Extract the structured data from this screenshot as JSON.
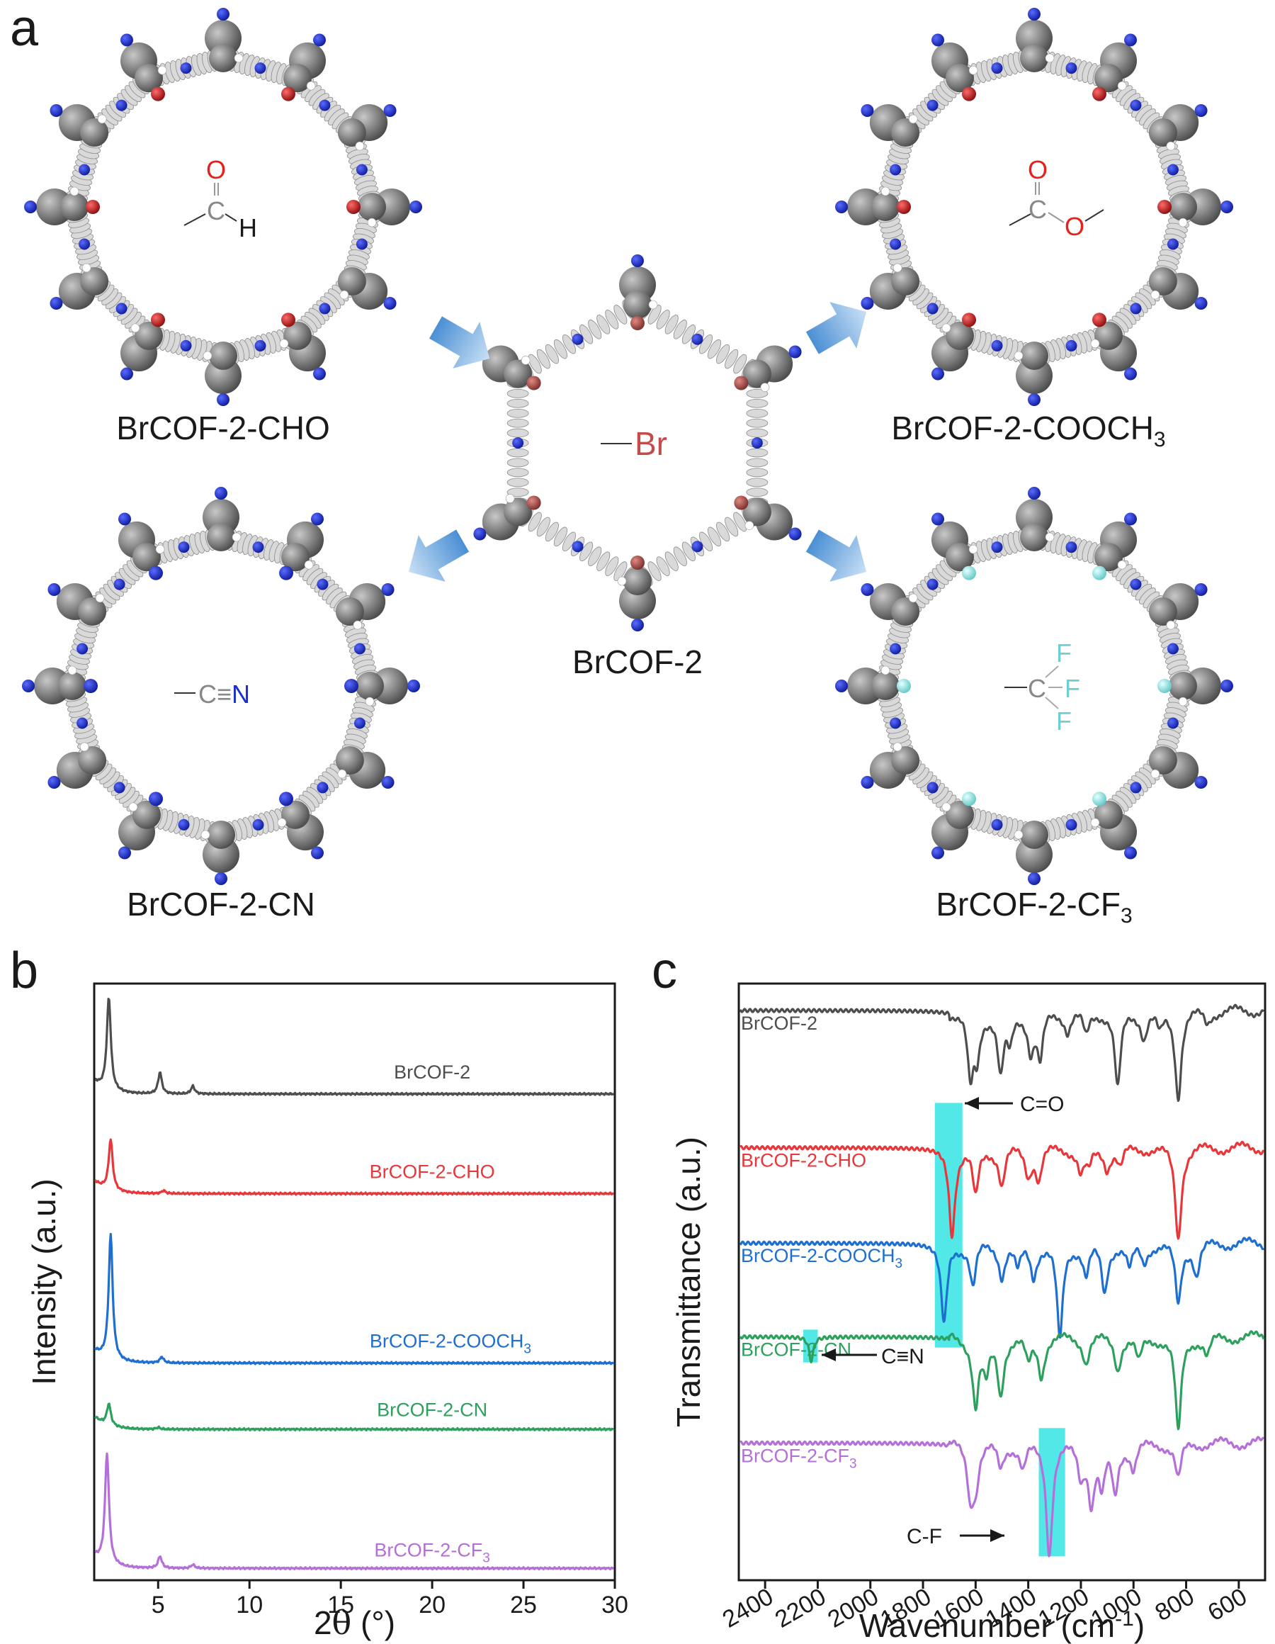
{
  "panels": {
    "a": "a",
    "b": "b",
    "c": "c"
  },
  "structures": {
    "center": {
      "label": "BrCOF-2",
      "group": "Br",
      "group_color": "#c44b4b"
    },
    "top_left": {
      "label": "BrCOF-2-CHO",
      "group": {
        "O": "O",
        "C": "C",
        "H": "H"
      }
    },
    "top_right": {
      "label_main": "BrCOF-2-COOCH",
      "label_sub": "3",
      "group": {
        "O1": "O",
        "C": "C",
        "O2": "O"
      }
    },
    "bottom_left": {
      "label": "BrCOF-2-CN",
      "group": {
        "C": "C",
        "triple": "≡",
        "N": "N"
      }
    },
    "bottom_right": {
      "label_main": "BrCOF-2-CF",
      "label_sub": "3",
      "group": {
        "C": "C",
        "F1": "F",
        "F2": "F",
        "F3": "F"
      }
    }
  },
  "colors": {
    "black": "#4d4d4d",
    "red": "#e8373a",
    "blue": "#1f6fd0",
    "green": "#2ea05e",
    "purple": "#b46fd9",
    "highlight": "#52e8e8",
    "carbon": "#6e6e6e",
    "nitrogen": "#1f2fcf",
    "oxygen": "#d01c1c",
    "bromine": "#b8504a",
    "fluorine": "#8fe0e0",
    "arrow": "#5a9bd8"
  },
  "chart_data": [
    {
      "type": "line",
      "panel": "b",
      "xlabel_pre": "2",
      "xlabel_theta": "θ",
      "xlabel_post": " (°)",
      "ylabel": "Intensity (a.u.)",
      "xlim": [
        1.5,
        30
      ],
      "xticks": [
        5,
        10,
        15,
        20,
        25,
        30
      ],
      "ylim": [
        0,
        100
      ],
      "series": [
        {
          "name": "BrCOF-2",
          "sub": "",
          "color": "#4d4d4d",
          "baseline": 81.5,
          "peaks": [
            [
              2.3,
              15.5
            ],
            [
              5.1,
              3.6
            ],
            [
              6.9,
              1.3
            ]
          ]
        },
        {
          "name": "BrCOF-2-CHO",
          "sub": "",
          "color": "#e8373a",
          "baseline": 64.8,
          "peaks": [
            [
              2.4,
              8.5
            ],
            [
              5.3,
              0.5
            ]
          ]
        },
        {
          "name": "BrCOF-2-COOCH",
          "sub": "3",
          "color": "#1f6fd0",
          "baseline": 36.4,
          "peaks": [
            [
              2.4,
              21.0
            ],
            [
              5.2,
              1.0
            ]
          ]
        },
        {
          "name": "BrCOF-2-CN",
          "sub": "",
          "color": "#2ea05e",
          "baseline": 25.3,
          "peaks": [
            [
              2.3,
              3.6
            ],
            [
              5.0,
              0.3
            ]
          ]
        },
        {
          "name": "BrCOF-2-CF",
          "sub": "3",
          "color": "#b46fd9",
          "baseline": 2.0,
          "peaks": [
            [
              2.2,
              18.5
            ],
            [
              5.1,
              2.0
            ],
            [
              6.9,
              0.6
            ]
          ]
        }
      ],
      "series_label_x": [
        20.0,
        20.0,
        21.0,
        20.0,
        20.0
      ],
      "series_label_offset": [
        2.6,
        2.6,
        2.6,
        2.2,
        2.0
      ]
    },
    {
      "type": "line",
      "panel": "c",
      "xlabel_main": "Wavenumber (cm",
      "xlabel_sup": "-1",
      "xlabel_close": ")",
      "ylabel": "Transmittance (a.u.)",
      "xlim": [
        2500,
        500
      ],
      "xticks": [
        2400,
        2200,
        2000,
        1800,
        1600,
        1400,
        1200,
        1000,
        800,
        600
      ],
      "ylim": [
        0,
        100
      ],
      "series": [
        {
          "name": "BrCOF-2",
          "sub": "",
          "color": "#4d4d4d",
          "baseline": 95.5,
          "dips": [
            [
              1620,
              11
            ],
            [
              1595,
              7
            ],
            [
              1505,
              10
            ],
            [
              1470,
              5
            ],
            [
              1390,
              6
            ],
            [
              1355,
              8
            ],
            [
              1250,
              3
            ],
            [
              1180,
              4
            ],
            [
              1060,
              13
            ],
            [
              960,
              4
            ],
            [
              900,
              3
            ],
            [
              830,
              14
            ],
            [
              720,
              2
            ]
          ]
        },
        {
          "name": "BrCOF-2-CHO",
          "sub": "",
          "color": "#e8373a",
          "baseline": 72.5,
          "dips": [
            [
              1690,
              14
            ],
            [
              1600,
              8
            ],
            [
              1500,
              6
            ],
            [
              1400,
              4
            ],
            [
              1360,
              5
            ],
            [
              1200,
              4
            ],
            [
              1170,
              3
            ],
            [
              1100,
              3
            ],
            [
              1050,
              3
            ],
            [
              830,
              15
            ]
          ]
        },
        {
          "name": "BrCOF-2-COOCH",
          "sub": "3",
          "color": "#1f6fd0",
          "baseline": 56.5,
          "dips": [
            [
              1720,
              13
            ],
            [
              1610,
              7
            ],
            [
              1500,
              5
            ],
            [
              1440,
              4
            ],
            [
              1380,
              5
            ],
            [
              1280,
              16
            ],
            [
              1180,
              5
            ],
            [
              1110,
              8
            ],
            [
              1015,
              4
            ],
            [
              960,
              3
            ],
            [
              830,
              10
            ],
            [
              760,
              5
            ]
          ]
        },
        {
          "name": "BrCOF-2-CN",
          "sub": "",
          "color": "#2ea05e",
          "baseline": 40.8,
          "dips": [
            [
              2225,
              4
            ],
            [
              1600,
              11
            ],
            [
              1560,
              6
            ],
            [
              1505,
              9
            ],
            [
              1400,
              4
            ],
            [
              1350,
              6
            ],
            [
              1180,
              4
            ],
            [
              1060,
              5
            ],
            [
              980,
              4
            ],
            [
              830,
              16
            ],
            [
              720,
              3
            ]
          ]
        },
        {
          "name": "BrCOF-2-CF",
          "sub": "3",
          "color": "#b46fd9",
          "baseline": 23.0,
          "dips": [
            [
              1620,
              8
            ],
            [
              1600,
              6
            ],
            [
              1505,
              4
            ],
            [
              1420,
              4
            ],
            [
              1320,
              18
            ],
            [
              1200,
              5
            ],
            [
              1160,
              9
            ],
            [
              1120,
              7
            ],
            [
              1070,
              8
            ],
            [
              1000,
              4
            ],
            [
              830,
              6
            ]
          ]
        }
      ],
      "labels": [
        "BrCOF-2",
        "BrCOF-2-CHO",
        "BrCOF-2-COOCH",
        "BrCOF-2-CN",
        "BrCOF-2-CF"
      ],
      "highlights": [
        {
          "label": "C=O",
          "from": 1755,
          "to": 1650,
          "y_from": 39,
          "y_to": 80
        },
        {
          "label": "C≡N",
          "from": 2255,
          "to": 2200,
          "y_from": 36.5,
          "y_to": 42
        },
        {
          "label": "C-F",
          "from": 1360,
          "to": 1260,
          "y_from": 4,
          "y_to": 25.5
        }
      ],
      "annotations": {
        "co": "C=O",
        "cn": "C≡N",
        "cf": "C-F"
      }
    }
  ]
}
